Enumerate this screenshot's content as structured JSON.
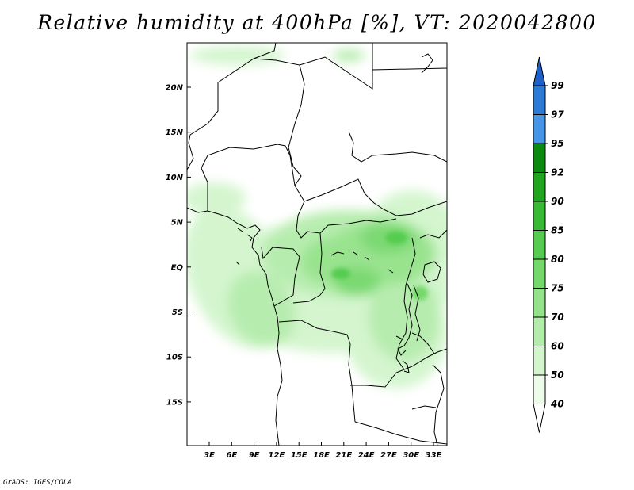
{
  "title": "Relative humidity at 400hPa [%], VT: 2020042800",
  "credit": "GrADS: IGES/COLA",
  "map": {
    "lat_ticks": [
      "20N",
      "15N",
      "10N",
      "5N",
      "EQ",
      "5S",
      "10S",
      "15S"
    ],
    "lon_ticks": [
      "3E",
      "6E",
      "9E",
      "12E",
      "15E",
      "18E",
      "21E",
      "24E",
      "27E",
      "30E",
      "33E"
    ]
  },
  "legend": {
    "labels": [
      "99",
      "97",
      "95",
      "92",
      "90",
      "85",
      "80",
      "75",
      "70",
      "60",
      "50",
      "40"
    ],
    "colors": [
      "#1e5fc9",
      "#2a7ad6",
      "#4596e8",
      "#0b8a10",
      "#1fa51e",
      "#37bb35",
      "#55cc4f",
      "#74d86a",
      "#94e28a",
      "#b4ecab",
      "#d2f5cc",
      "#edfbe9",
      "#ffffff"
    ]
  }
}
